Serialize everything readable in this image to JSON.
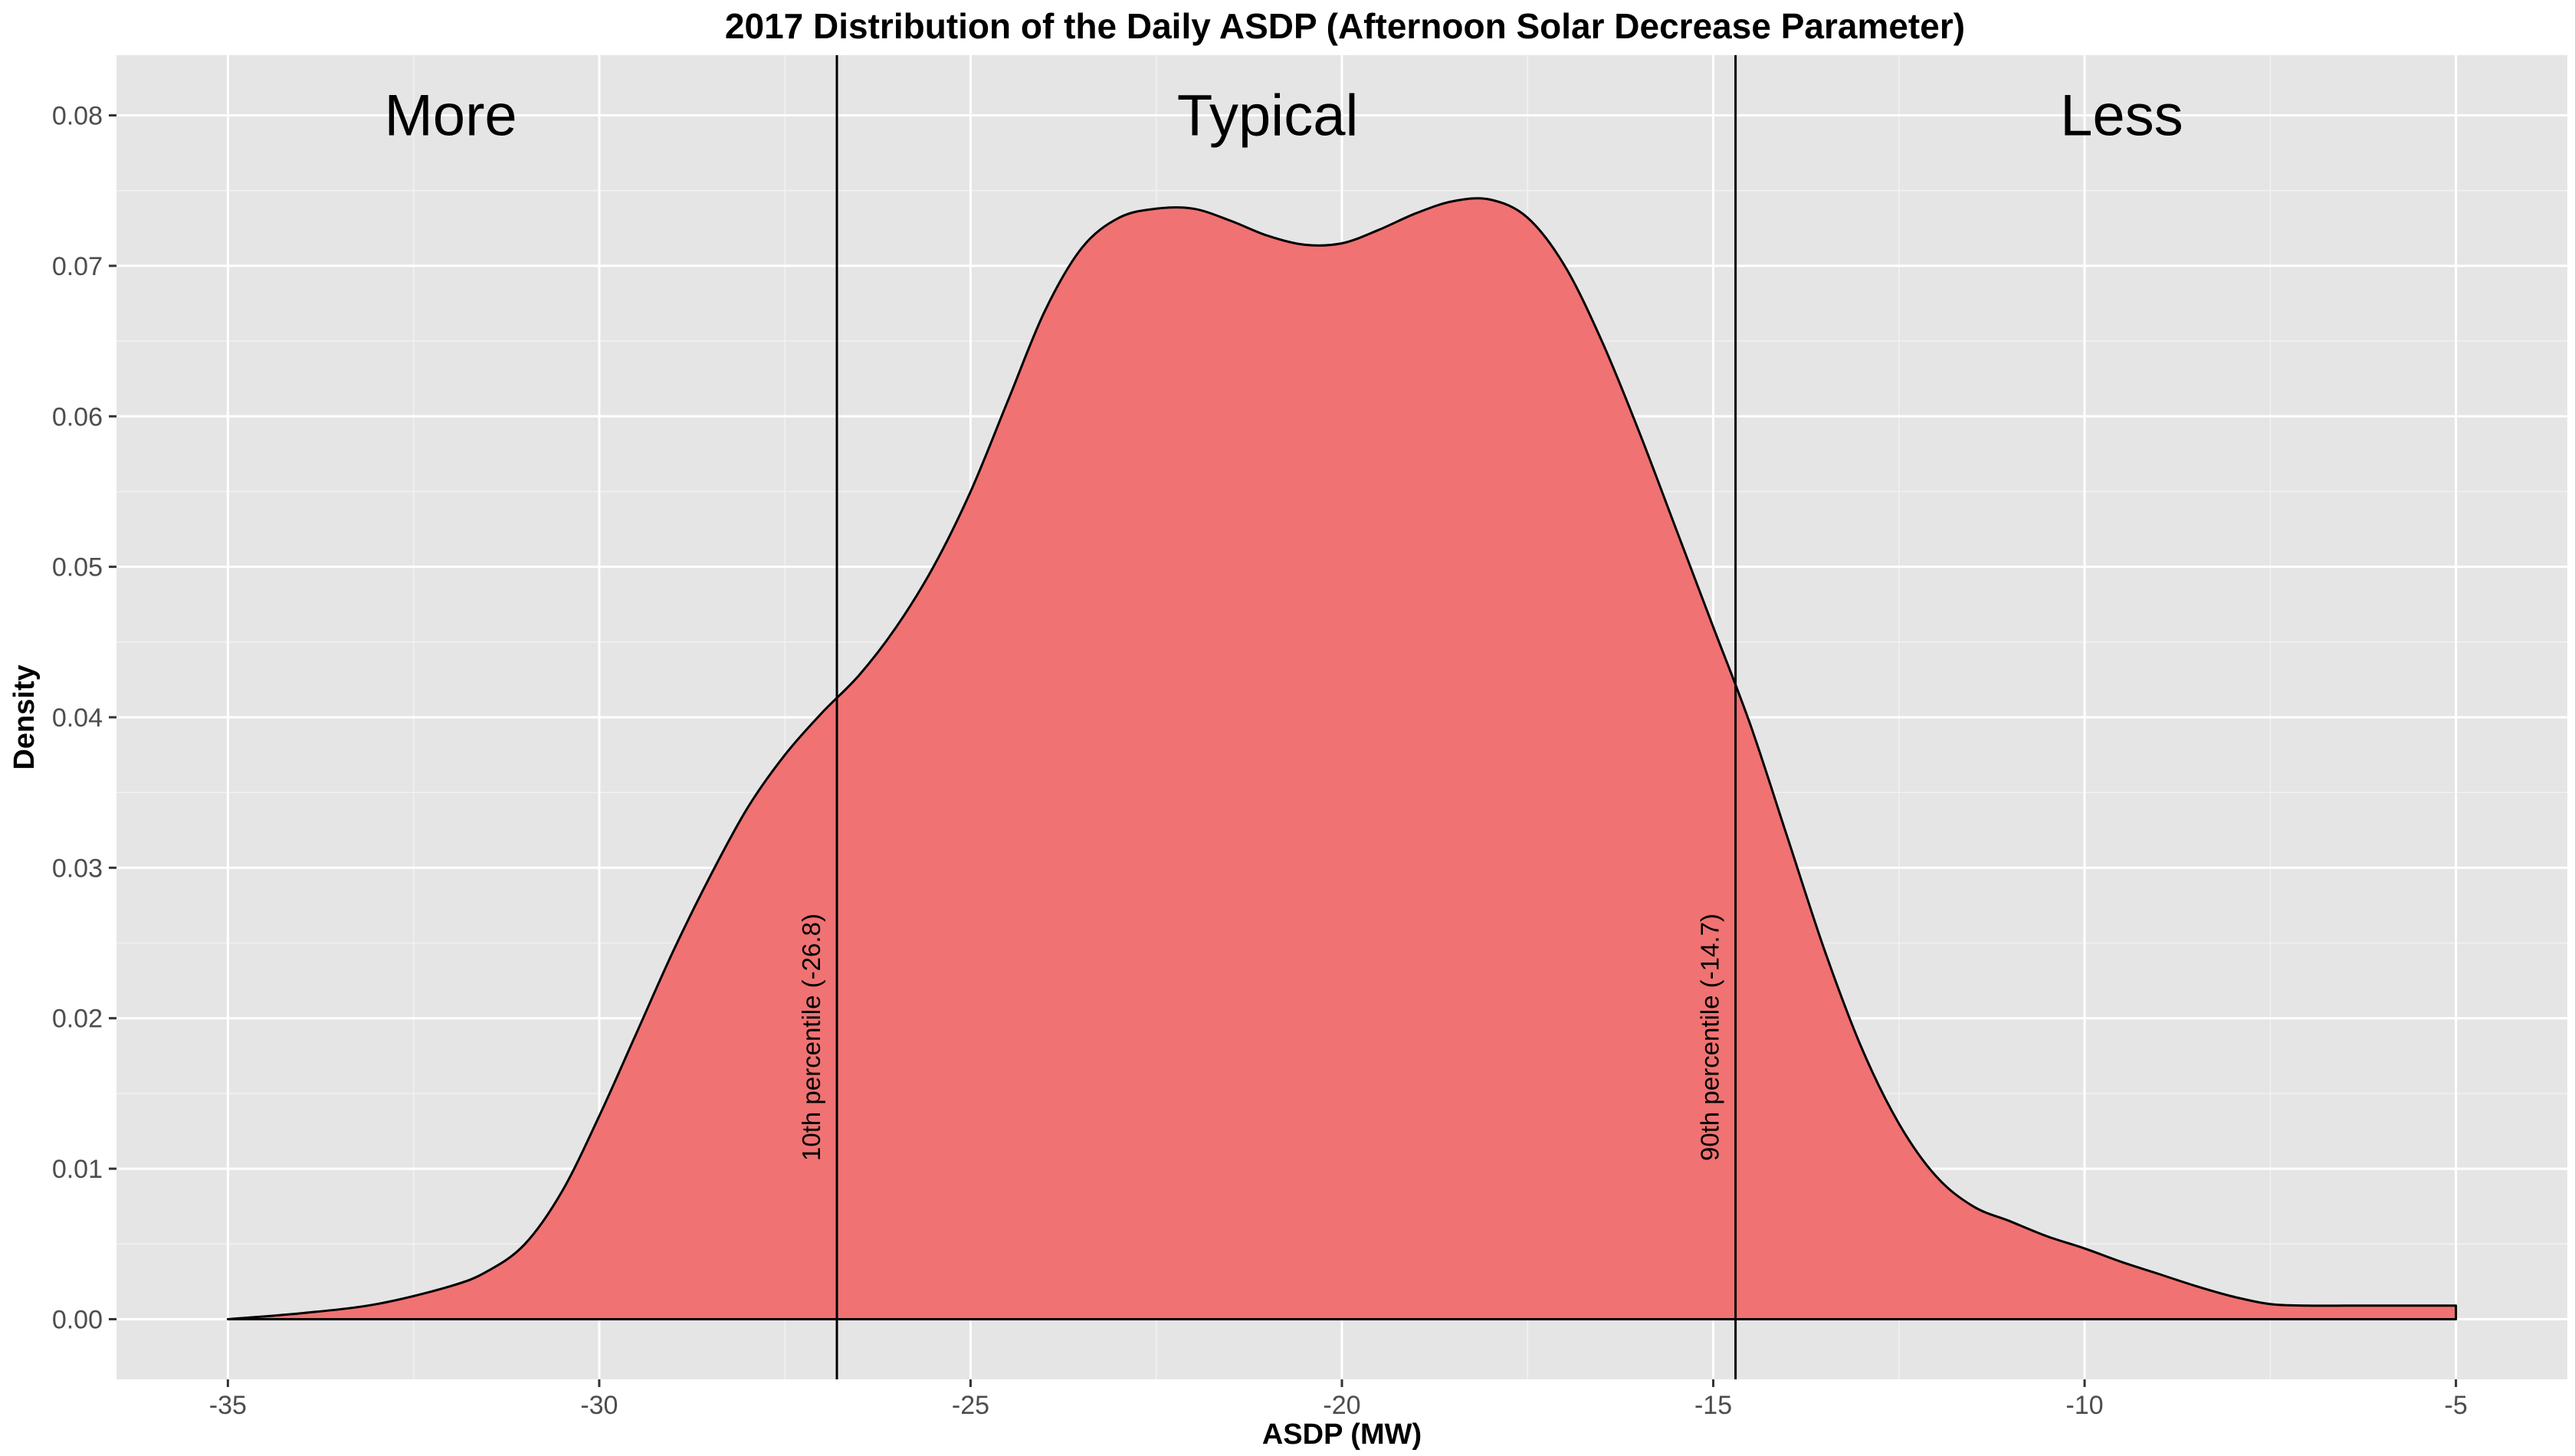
{
  "chart_data": {
    "type": "area",
    "title": "2017 Distribution of the Daily ASDP (Afternoon Solar Decrease Parameter)",
    "xlabel": "ASDP (MW)",
    "ylabel": "Density",
    "xlim": [
      -36.5,
      -3.5
    ],
    "ylim": [
      -0.004,
      0.084
    ],
    "x_ticks": [
      -35,
      -30,
      -25,
      -20,
      -15,
      -10,
      -5
    ],
    "x_tick_labels": [
      "-35",
      "-30",
      "-25",
      "-20",
      "-15",
      "-10",
      "-5"
    ],
    "y_ticks": [
      0.0,
      0.01,
      0.02,
      0.03,
      0.04,
      0.05,
      0.06,
      0.07,
      0.08
    ],
    "y_tick_labels": [
      "0.00",
      "0.01",
      "0.02",
      "0.03",
      "0.04",
      "0.05",
      "0.06",
      "0.07",
      "0.08"
    ],
    "grid": true,
    "legend": "none",
    "fill_color": "#f07272",
    "panel_color": "#e5e5e5",
    "series": [
      {
        "x": [
          -35,
          -34,
          -33,
          -32,
          -31.5,
          -31,
          -30.5,
          -30,
          -29.5,
          -29,
          -28.5,
          -28,
          -27.5,
          -27,
          -26.5,
          -26,
          -25.5,
          -25,
          -24.5,
          -24,
          -23.5,
          -23,
          -22.5,
          -22,
          -21.5,
          -21,
          -20.5,
          -20,
          -19.5,
          -19,
          -18.5,
          -18,
          -17.5,
          -17,
          -16.5,
          -16,
          -15.5,
          -15,
          -14.5,
          -14,
          -13.5,
          -13,
          -12.5,
          -12,
          -11.5,
          -11,
          -10.5,
          -10,
          -9.5,
          -9,
          -8.5,
          -8,
          -7.5,
          -7,
          -6.5,
          -6,
          -5.5,
          -5
        ],
        "y": [
          0.0,
          0.0004,
          0.001,
          0.0022,
          0.0032,
          0.005,
          0.0085,
          0.0135,
          0.019,
          0.0245,
          0.0295,
          0.034,
          0.0375,
          0.0403,
          0.0428,
          0.046,
          0.05,
          0.055,
          0.061,
          0.067,
          0.0712,
          0.0732,
          0.0738,
          0.0738,
          0.073,
          0.072,
          0.0714,
          0.0715,
          0.0724,
          0.0735,
          0.0743,
          0.0744,
          0.0732,
          0.07,
          0.065,
          0.059,
          0.0525,
          0.046,
          0.0395,
          0.032,
          0.0245,
          0.018,
          0.013,
          0.0095,
          0.0075,
          0.0065,
          0.0055,
          0.0047,
          0.0038,
          0.003,
          0.0022,
          0.0015,
          0.001,
          0.0009,
          0.0009,
          0.0009,
          0.0009,
          0.0009
        ]
      }
    ],
    "vlines": [
      {
        "x": -26.8,
        "label": "10th percentile (-26.8)"
      },
      {
        "x": -14.7,
        "label": "90th percentile (-14.7)"
      }
    ],
    "region_labels": [
      {
        "x": -32,
        "y": 0.08,
        "text": "More"
      },
      {
        "x": -21,
        "y": 0.08,
        "text": "Typical"
      },
      {
        "x": -9.5,
        "y": 0.08,
        "text": "Less"
      }
    ]
  }
}
